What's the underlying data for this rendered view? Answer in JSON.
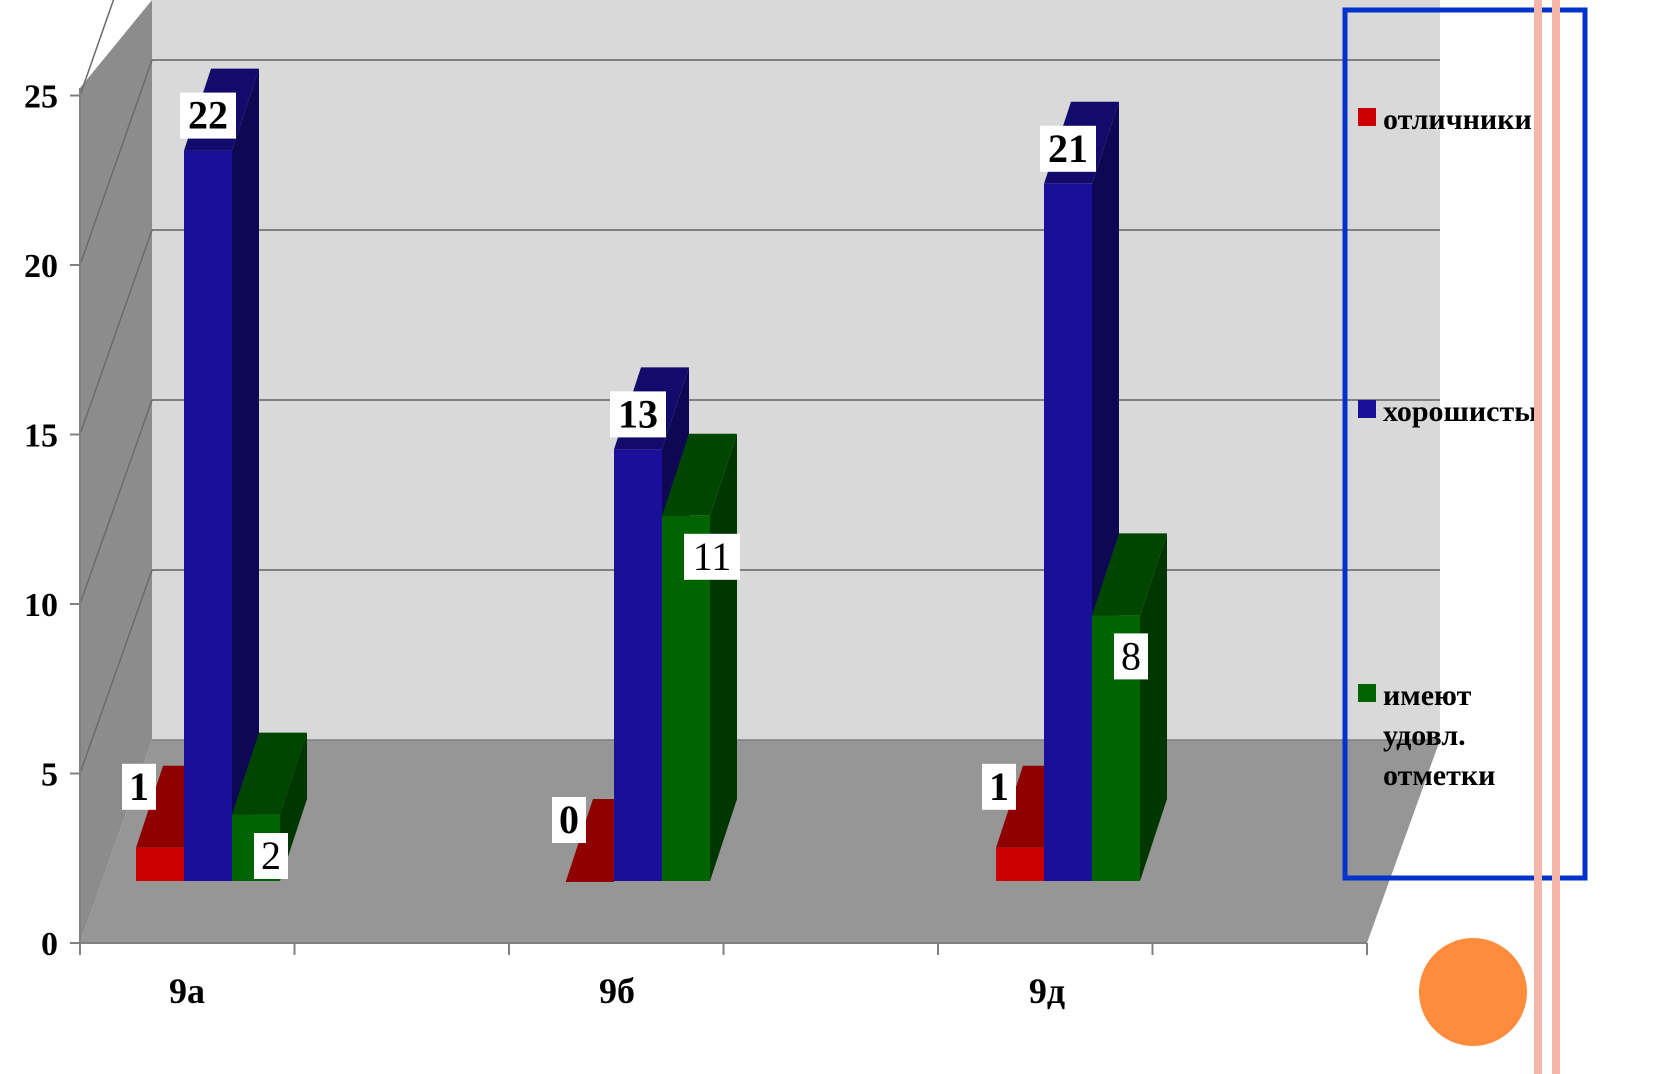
{
  "chart_data": {
    "type": "bar",
    "title": "",
    "xlabel": "",
    "ylabel": "",
    "ylim": [
      0,
      25
    ],
    "yticks": [
      0,
      5,
      10,
      15,
      20,
      25
    ],
    "categories": [
      "9а",
      "9б",
      "9д"
    ],
    "series": [
      {
        "name": "отличники",
        "values": [
          1,
          0,
          1
        ],
        "color": "#cc0000",
        "label_bold": true
      },
      {
        "name": "хорошисты",
        "values": [
          22,
          13,
          21
        ],
        "color": "#1a0f99",
        "label_bold": true
      },
      {
        "name": "имеют удовл. отметки",
        "name_lines": [
          "имеют",
          "удовл.",
          "отметки"
        ],
        "values": [
          2,
          11,
          8
        ],
        "color": "#006400",
        "label_bold": false
      }
    ],
    "legend_position": "right",
    "grid": true,
    "style": "3d-clustered-column",
    "colors": {
      "wall": "#d9d9d9",
      "floor": "#969696",
      "side_wall": "#8c8c8c",
      "legend_border": "#0033cc",
      "accent_circle": "#ff8c3c"
    }
  }
}
